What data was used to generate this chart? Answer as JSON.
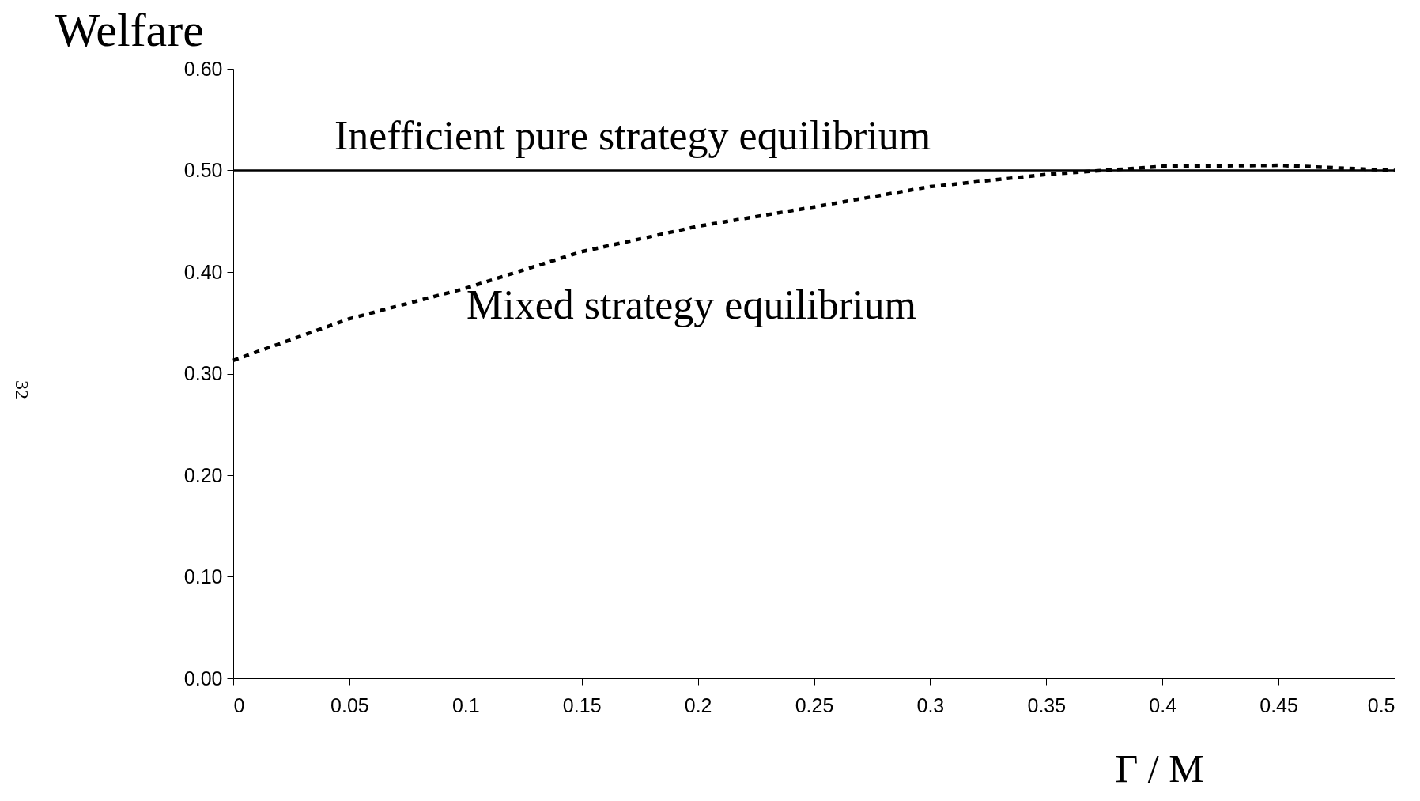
{
  "chart_data": {
    "type": "line",
    "xlabel": "Γ / M",
    "ylabel": "Welfare",
    "annotations": [
      "32"
    ],
    "xlim": [
      0,
      0.5
    ],
    "xticks": [
      0,
      0.05,
      0.1,
      0.15,
      0.2,
      0.25,
      0.3,
      0.35,
      0.4,
      0.45,
      0.5
    ],
    "ylim": [
      0,
      0.6
    ],
    "yticks": [
      {
        "value": 0,
        "label": "0.00"
      },
      {
        "value": 0.1,
        "label": "0.10"
      },
      {
        "value": 0.2,
        "label": "0.20"
      },
      {
        "value": 0.3,
        "label": "0.30"
      },
      {
        "value": 0.4,
        "label": "0.40"
      },
      {
        "value": 0.5,
        "label": "0.50"
      },
      {
        "value": 0.6,
        "label": "0.60"
      }
    ],
    "grid": false,
    "series": [
      {
        "name": "Inefficient pure strategy equilibrium",
        "color": "#000000",
        "line_style": "solid",
        "x": [
          0,
          0.5
        ],
        "values": [
          0.5,
          0.5
        ]
      },
      {
        "name": "Mixed strategy equilibrium",
        "color": "#000000",
        "line_style": "dotted",
        "x": [
          0,
          0.05,
          0.1,
          0.15,
          0.2,
          0.25,
          0.3,
          0.35,
          0.4,
          0.45,
          0.5
        ],
        "values": [
          0.313,
          0.354,
          0.384,
          0.42,
          0.445,
          0.464,
          0.484,
          0.496,
          0.504,
          0.505,
          0.5
        ]
      }
    ]
  }
}
